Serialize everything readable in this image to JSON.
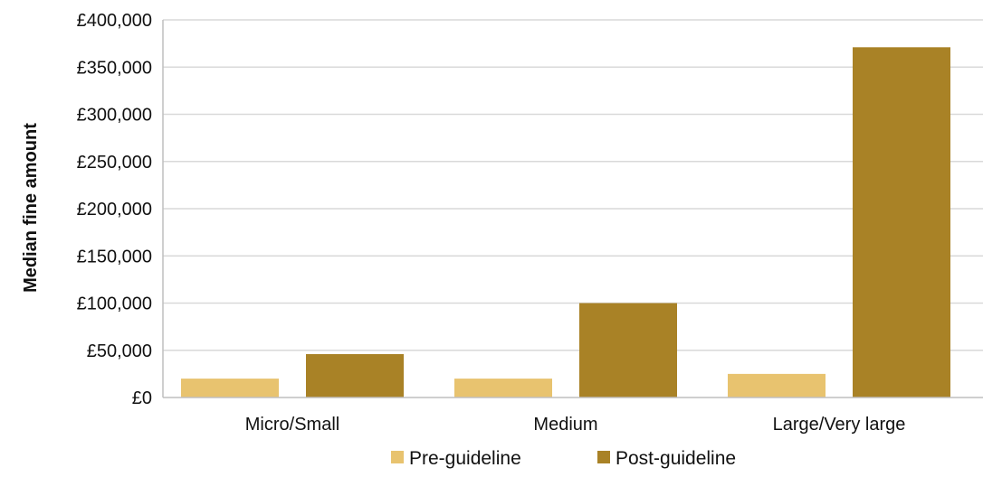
{
  "chart_data": {
    "type": "bar",
    "title": "",
    "xlabel": "",
    "ylabel": "Median fine amount",
    "categories": [
      "Micro/Small",
      "Medium",
      "Large/Very large"
    ],
    "series": [
      {
        "name": "Pre-guideline",
        "color": "#e8c36f",
        "values": [
          20000,
          20000,
          25000
        ]
      },
      {
        "name": "Post-guideline",
        "color": "#a98226",
        "values": [
          46000,
          100000,
          371000
        ]
      }
    ],
    "ylim": [
      0,
      400000
    ],
    "y_ticks": [
      0,
      50000,
      100000,
      150000,
      200000,
      250000,
      300000,
      350000,
      400000
    ],
    "y_tick_labels": [
      "£0",
      "£50,000",
      "£100,000",
      "£150,000",
      "£200,000",
      "£250,000",
      "£300,000",
      "£350,000",
      "£400,000"
    ],
    "grid": true,
    "legend_position": "bottom"
  }
}
